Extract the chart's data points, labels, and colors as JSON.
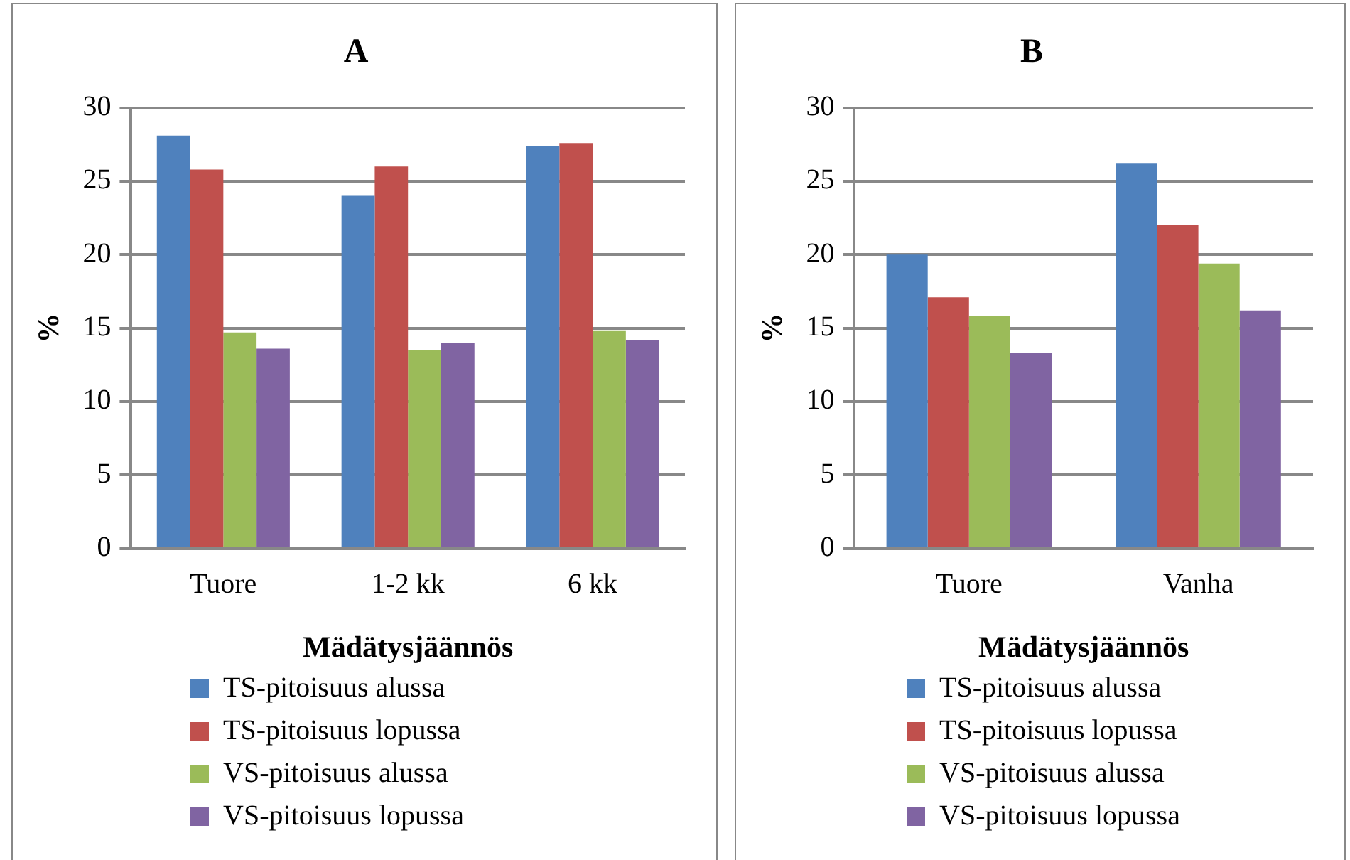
{
  "chart_data": [
    {
      "type": "bar",
      "title": "A",
      "xlabel": "Mädätysjäännös",
      "ylabel": "%",
      "categories": [
        "Tuore",
        "1-2 kk",
        "6 kk"
      ],
      "series": [
        {
          "name": "TS-pitoisuus alussa",
          "color": "#4f81bd",
          "values": [
            28.1,
            24.0,
            27.4
          ]
        },
        {
          "name": "TS-pitoisuus lopussa",
          "color": "#c0504d",
          "values": [
            25.8,
            26.0,
            27.6
          ]
        },
        {
          "name": "VS-pitoisuus alussa",
          "color": "#9bbb59",
          "values": [
            14.7,
            13.5,
            14.8
          ]
        },
        {
          "name": "VS-pitoisuus lopussa",
          "color": "#8064a2",
          "values": [
            13.6,
            14.0,
            14.2
          ]
        }
      ],
      "ylim": [
        0,
        30
      ],
      "yticks": [
        0,
        5,
        10,
        15,
        20,
        25,
        30
      ],
      "grid": "y",
      "legend": "bottom"
    },
    {
      "type": "bar",
      "title": "B",
      "xlabel": "Mädätysjäännös",
      "ylabel": "%",
      "categories": [
        "Tuore",
        "Vanha"
      ],
      "series": [
        {
          "name": "TS-pitoisuus alussa",
          "color": "#4f81bd",
          "values": [
            20.0,
            26.2
          ]
        },
        {
          "name": "TS-pitoisuus lopussa",
          "color": "#c0504d",
          "values": [
            17.1,
            22.0
          ]
        },
        {
          "name": "VS-pitoisuus alussa",
          "color": "#9bbb59",
          "values": [
            15.8,
            19.4
          ]
        },
        {
          "name": "VS-pitoisuus lopussa",
          "color": "#8064a2",
          "values": [
            13.3,
            16.2
          ]
        }
      ],
      "ylim": [
        0,
        30
      ],
      "yticks": [
        0,
        5,
        10,
        15,
        20,
        25,
        30
      ],
      "grid": "y",
      "legend": "bottom"
    }
  ]
}
